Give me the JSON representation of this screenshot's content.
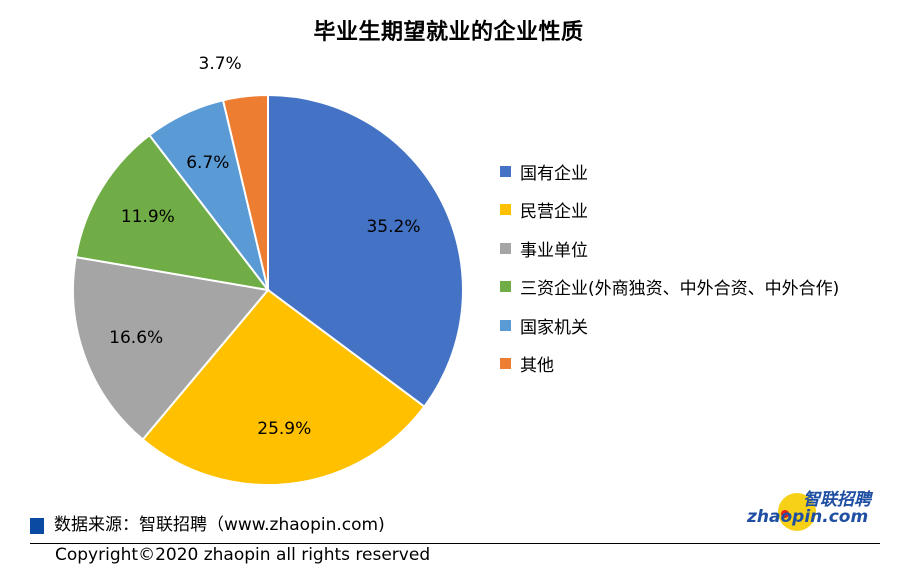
{
  "title": "毕业生期望就业的企业性质",
  "legend": [
    {
      "label": "国有企业",
      "color": "#4472c4"
    },
    {
      "label": "民营企业",
      "color": "#ffc000"
    },
    {
      "label": "事业单位",
      "color": "#a5a5a5"
    },
    {
      "label": "三资企业(外商独资、中外合资、中外合作)",
      "color": "#70ad47"
    },
    {
      "label": "国家机关",
      "color": "#5b9bd5"
    },
    {
      "label": "其他",
      "color": "#ed7d31"
    }
  ],
  "slice_labels": [
    "35.2%",
    "25.9%",
    "16.6%",
    "11.9%",
    "6.7%",
    "3.7%"
  ],
  "footer": {
    "source": "数据来源：智联招聘（www.zhaopin.com)",
    "copyright": "Copyright©2020 zhaopin all rights reserved",
    "logo_cn": "智联招聘",
    "logo_en": "zhaopin.com"
  },
  "chart_data": {
    "type": "pie",
    "title": "毕业生期望就业的企业性质",
    "categories": [
      "国有企业",
      "民营企业",
      "事业单位",
      "三资企业(外商独资、中外合资、中外合作)",
      "国家机关",
      "其他"
    ],
    "values": [
      35.2,
      25.9,
      16.6,
      11.9,
      6.7,
      3.7
    ],
    "unit": "%",
    "colors": [
      "#4472c4",
      "#ffc000",
      "#a5a5a5",
      "#70ad47",
      "#5b9bd5",
      "#ed7d31"
    ],
    "start_angle": "12 o'clock, clockwise",
    "legend_position": "right"
  }
}
